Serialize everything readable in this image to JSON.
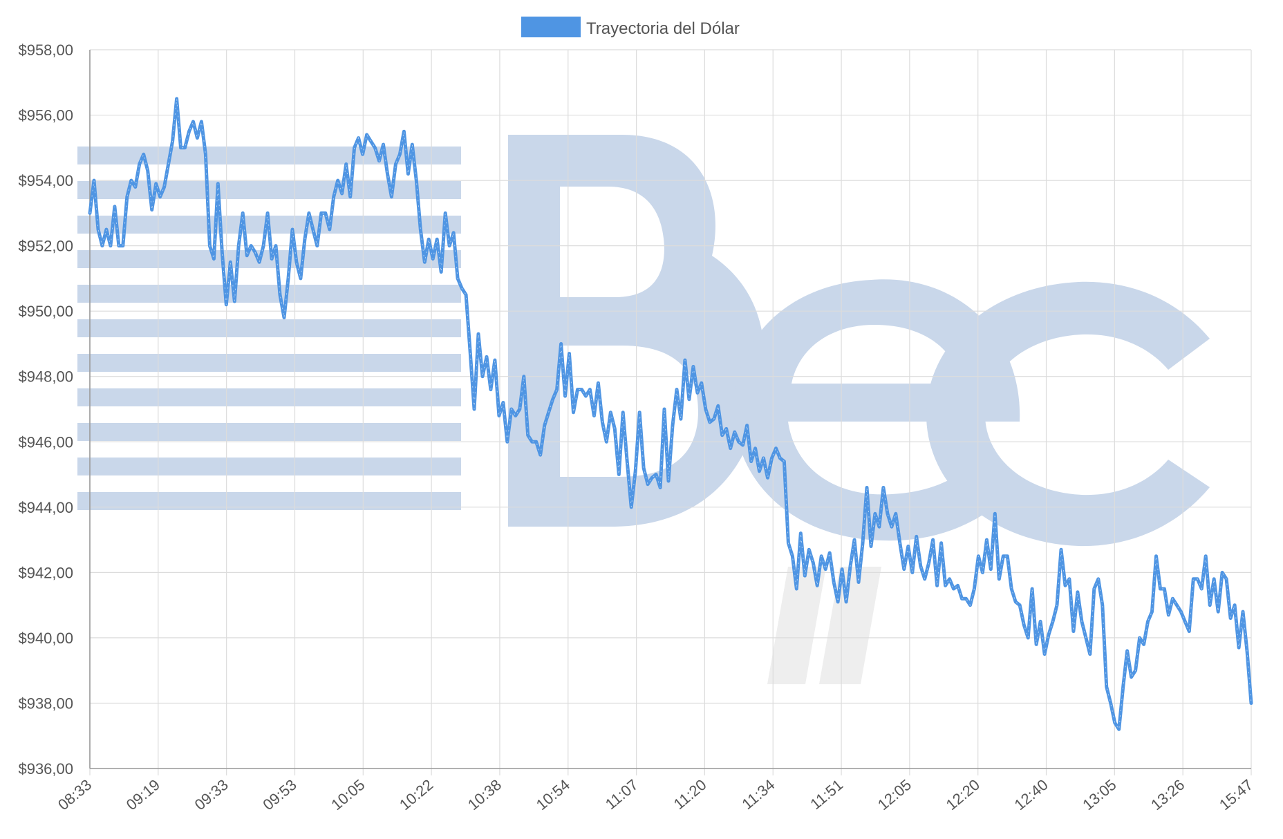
{
  "colors": {
    "series": "#4f95e3",
    "grid": "#dcdcdc",
    "watermark": "#c9d7ea"
  },
  "chart_data": {
    "type": "line",
    "title": "",
    "xlabel": "",
    "ylabel": "",
    "ylim": [
      936,
      958
    ],
    "ytick_values": [
      936,
      938,
      940,
      942,
      944,
      946,
      948,
      950,
      952,
      954,
      956,
      958
    ],
    "y_tick_labels": [
      "$936,00",
      "$938,00",
      "$940,00",
      "$942,00",
      "$944,00",
      "$946,00",
      "$948,00",
      "$950,00",
      "$952,00",
      "$954,00",
      "$956,00",
      "$958,00"
    ],
    "x_tick_labels": [
      "08:33",
      "09:19",
      "09:33",
      "09:53",
      "10:05",
      "10:22",
      "10:38",
      "10:54",
      "11:07",
      "11:20",
      "11:34",
      "11:51",
      "12:05",
      "12:20",
      "12:40",
      "13:05",
      "13:26",
      "15:47"
    ],
    "legend": {
      "placement": "top-center",
      "entries": [
        "Trayectoria del Dólar"
      ]
    },
    "grid": true,
    "series": [
      {
        "name": "Trayectoria del Dólar",
        "values": [
          953.0,
          954.0,
          952.5,
          952.0,
          952.5,
          952.0,
          953.2,
          952.0,
          952.0,
          953.5,
          954.0,
          953.8,
          954.5,
          954.8,
          954.3,
          953.1,
          953.9,
          953.5,
          953.8,
          954.5,
          955.2,
          956.5,
          955.0,
          955.0,
          955.5,
          955.8,
          955.3,
          955.8,
          954.8,
          952.0,
          951.6,
          953.9,
          951.8,
          950.2,
          951.5,
          950.3,
          952.0,
          953.0,
          951.7,
          952.0,
          951.8,
          951.5,
          952.0,
          953.0,
          951.6,
          952.0,
          950.5,
          949.8,
          951.0,
          952.5,
          951.5,
          951.0,
          952.2,
          953.0,
          952.5,
          952.0,
          953.0,
          953.0,
          952.5,
          953.5,
          954.0,
          953.6,
          954.5,
          953.5,
          955.0,
          955.3,
          954.8,
          955.4,
          955.2,
          955.0,
          954.6,
          955.1,
          954.2,
          953.5,
          954.5,
          954.8,
          955.5,
          954.2,
          955.1,
          954.0,
          952.5,
          951.5,
          952.2,
          951.6,
          952.2,
          951.2,
          953.0,
          952.0,
          952.4,
          951.0,
          950.7,
          950.5,
          948.8,
          947.0,
          949.3,
          948.0,
          948.6,
          947.6,
          948.5,
          946.8,
          947.2,
          946.0,
          947.0,
          946.8,
          947.0,
          948.0,
          946.2,
          946.0,
          946.0,
          945.6,
          946.5,
          946.9,
          947.3,
          947.6,
          949.0,
          947.4,
          948.7,
          946.9,
          947.6,
          947.6,
          947.4,
          947.6,
          946.8,
          947.8,
          946.6,
          946.0,
          946.9,
          946.4,
          945.0,
          946.9,
          945.4,
          944.0,
          945.1,
          946.9,
          945.2,
          944.7,
          944.9,
          945.0,
          944.6,
          947.0,
          944.8,
          946.5,
          947.6,
          946.7,
          948.5,
          947.3,
          948.3,
          947.5,
          947.8,
          947.0,
          946.6,
          946.7,
          947.1,
          946.2,
          946.4,
          945.8,
          946.3,
          946.0,
          945.9,
          946.5,
          945.4,
          945.8,
          945.1,
          945.5,
          944.9,
          945.5,
          945.8,
          945.5,
          945.4,
          942.9,
          942.5,
          941.5,
          943.2,
          941.9,
          942.7,
          942.3,
          941.6,
          942.5,
          942.1,
          942.6,
          941.7,
          941.1,
          942.1,
          941.1,
          942.2,
          943.0,
          941.7,
          942.9,
          944.6,
          942.8,
          943.8,
          943.4,
          944.6,
          943.8,
          943.4,
          943.8,
          942.9,
          942.1,
          942.8,
          942.0,
          943.1,
          942.2,
          941.8,
          942.3,
          943.0,
          941.6,
          942.9,
          941.6,
          941.8,
          941.5,
          941.6,
          941.2,
          941.2,
          941.0,
          941.5,
          942.5,
          942.0,
          943.0,
          942.1,
          943.8,
          941.8,
          942.5,
          942.5,
          941.5,
          941.1,
          941.0,
          940.4,
          940.0,
          941.5,
          939.8,
          940.5,
          939.5,
          940.1,
          940.5,
          941.0,
          942.7,
          941.6,
          941.8,
          940.2,
          941.4,
          940.5,
          940.0,
          939.5,
          941.5,
          941.8,
          941.0,
          938.5,
          938.0,
          937.4,
          937.2,
          938.5,
          939.6,
          938.8,
          939.0,
          940.0,
          939.8,
          940.5,
          940.8,
          942.5,
          941.5,
          941.5,
          940.7,
          941.2,
          941.0,
          940.8,
          940.5,
          940.2,
          941.8,
          941.8,
          941.5,
          942.5,
          941.0,
          941.8,
          940.8,
          942.0,
          941.8,
          940.6,
          941.0,
          939.7,
          940.8,
          939.6,
          938.0
        ]
      }
    ]
  }
}
